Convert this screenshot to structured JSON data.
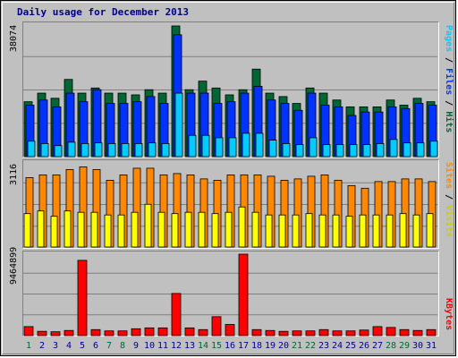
{
  "title": "Daily usage for December 2013",
  "colors": {
    "hits": "#006633",
    "files": "#0033ff",
    "pages": "#00ccff",
    "visits": "#ffff00",
    "sites": "#ff8800",
    "kbytes": "#ff0000",
    "weekday_label": "#006633",
    "day_label": "#00008b"
  },
  "chart_data": [
    {
      "type": "bar",
      "name": "hits-files-pages",
      "ymax_label": "38074",
      "ylim": [
        0,
        38074
      ],
      "legend": [
        "Pages",
        "Files",
        "Hits"
      ],
      "categories": [
        "1",
        "2",
        "3",
        "4",
        "5",
        "6",
        "7",
        "8",
        "9",
        "10",
        "11",
        "12",
        "13",
        "14",
        "15",
        "16",
        "17",
        "18",
        "19",
        "20",
        "21",
        "22",
        "23",
        "24",
        "25",
        "26",
        "27",
        "28",
        "29",
        "30",
        "31"
      ],
      "series": [
        {
          "name": "Hits",
          "values": [
            16000,
            18500,
            17000,
            22500,
            18500,
            20000,
            18500,
            18500,
            18000,
            19500,
            18500,
            38074,
            19500,
            22000,
            20000,
            18000,
            19500,
            25500,
            18500,
            17500,
            15500,
            20000,
            18500,
            16500,
            14500,
            14500,
            14500,
            16500,
            15000,
            17000,
            16000
          ]
        },
        {
          "name": "Files",
          "values": [
            15000,
            16500,
            14500,
            18500,
            16000,
            19500,
            15500,
            15500,
            16000,
            17500,
            15500,
            35500,
            18500,
            18500,
            15500,
            16000,
            18500,
            20500,
            16500,
            15500,
            13500,
            18500,
            15000,
            14500,
            12000,
            13000,
            13000,
            14500,
            14000,
            15500,
            15000
          ]
        },
        {
          "name": "Pages",
          "values": [
            4500,
            3800,
            3200,
            4200,
            3800,
            4000,
            3800,
            3800,
            3800,
            4000,
            3800,
            18500,
            6200,
            6200,
            5500,
            5500,
            6800,
            6800,
            4800,
            3800,
            3500,
            5500,
            3500,
            3500,
            3500,
            3500,
            3800,
            5000,
            4000,
            4000,
            4500
          ]
        }
      ]
    },
    {
      "type": "bar",
      "name": "visits-sites",
      "ymax_label": "3116",
      "ylim": [
        0,
        3116
      ],
      "legend": [
        "Sites",
        "Visits"
      ],
      "categories": [
        "1",
        "2",
        "3",
        "4",
        "5",
        "6",
        "7",
        "8",
        "9",
        "10",
        "11",
        "12",
        "13",
        "14",
        "15",
        "16",
        "17",
        "18",
        "19",
        "20",
        "21",
        "22",
        "23",
        "24",
        "25",
        "26",
        "27",
        "28",
        "29",
        "30",
        "31"
      ],
      "series": [
        {
          "name": "Sites",
          "values": [
            2600,
            2700,
            2700,
            2900,
            3000,
            2900,
            2500,
            2700,
            2950,
            2950,
            2700,
            2750,
            2700,
            2550,
            2500,
            2700,
            2700,
            2700,
            2650,
            2500,
            2550,
            2650,
            2700,
            2500,
            2300,
            2200,
            2450,
            2450,
            2550,
            2550,
            2450
          ]
        },
        {
          "name": "Visits",
          "values": [
            1250,
            1350,
            1150,
            1350,
            1300,
            1300,
            1200,
            1200,
            1300,
            1600,
            1300,
            1250,
            1300,
            1300,
            1250,
            1300,
            1500,
            1300,
            1200,
            1200,
            1200,
            1250,
            1200,
            1200,
            1150,
            1200,
            1200,
            1200,
            1250,
            1200,
            1250
          ]
        }
      ]
    },
    {
      "type": "bar",
      "name": "kbytes",
      "ymax_label": "9464899",
      "ylim": [
        0,
        9464899
      ],
      "legend": [
        "KBytes"
      ],
      "categories": [
        "1",
        "2",
        "3",
        "4",
        "5",
        "6",
        "7",
        "8",
        "9",
        "10",
        "11",
        "12",
        "13",
        "14",
        "15",
        "16",
        "17",
        "18",
        "19",
        "20",
        "21",
        "22",
        "23",
        "24",
        "25",
        "26",
        "27",
        "28",
        "29",
        "30",
        "31"
      ],
      "series": [
        {
          "name": "KBytes",
          "values": [
            1050000,
            500000,
            450000,
            600000,
            8750000,
            700000,
            550000,
            550000,
            800000,
            900000,
            900000,
            4900000,
            900000,
            700000,
            2200000,
            1300000,
            9464899,
            700000,
            600000,
            500000,
            550000,
            550000,
            700000,
            550000,
            550000,
            650000,
            1050000,
            950000,
            700000,
            600000,
            700000
          ]
        }
      ]
    }
  ],
  "weekend_days": [
    "1",
    "7",
    "8",
    "14",
    "15",
    "21",
    "22",
    "28",
    "29"
  ]
}
